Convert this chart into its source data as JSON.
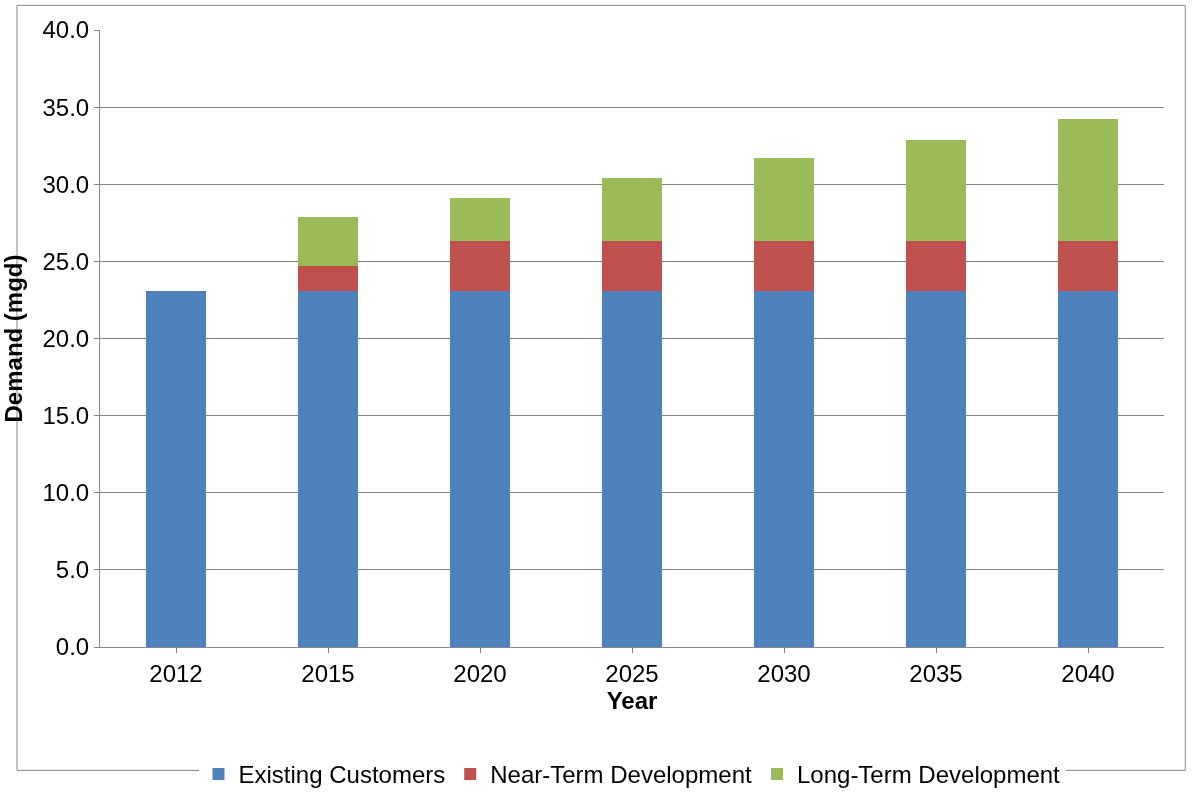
{
  "chart_data": {
    "type": "bar",
    "stacked": true,
    "xlabel": "Year",
    "ylabel": "Demand (mgd)",
    "categories": [
      "2012",
      "2015",
      "2020",
      "2025",
      "2030",
      "2035",
      "2040"
    ],
    "series": [
      {
        "name": "Existing Customers",
        "color": "#4f81bd",
        "values": [
          23.1,
          23.1,
          23.1,
          23.1,
          23.1,
          23.1,
          23.1
        ]
      },
      {
        "name": "Near-Term Development",
        "color": "#c0504d",
        "values": [
          null,
          1.6,
          3.2,
          3.2,
          3.2,
          3.2,
          3.2
        ]
      },
      {
        "name": "Long-Term Development",
        "color": "#9bbb59",
        "values": [
          null,
          3.2,
          2.8,
          4.1,
          5.4,
          6.6,
          7.9
        ]
      }
    ],
    "ylim": [
      0,
      40
    ],
    "yticks": [
      {
        "value": 0,
        "label": "0.0"
      },
      {
        "value": 5,
        "label": "5.0"
      },
      {
        "value": 10,
        "label": "10.0"
      },
      {
        "value": 15,
        "label": "15.0"
      },
      {
        "value": 20,
        "label": "20.0"
      },
      {
        "value": 25,
        "label": "25.0"
      },
      {
        "value": 30,
        "label": "30.0"
      },
      {
        "value": 35,
        "label": "35.0"
      },
      {
        "value": 40,
        "label": "40.0"
      }
    ],
    "grid": "y",
    "legend": "bottom"
  }
}
